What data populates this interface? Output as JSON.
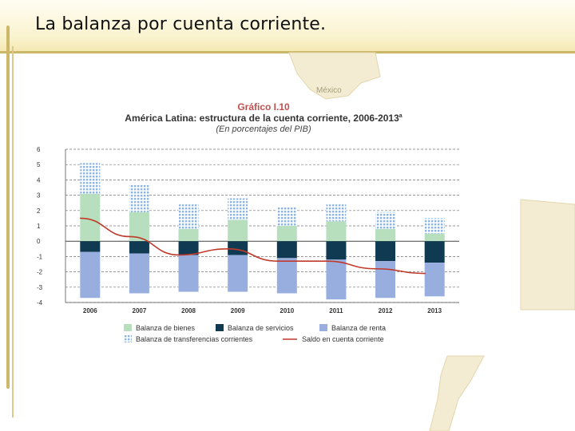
{
  "slide": {
    "title": "La balanza por cuenta corriente."
  },
  "map": {
    "label": "México"
  },
  "colors": {
    "bienes": "#b7dfbd",
    "servicios": "#0f3a52",
    "renta": "#98aede",
    "transferencias": "#8fb4e2",
    "saldo": "#c0392b",
    "accent": "#cbb866"
  },
  "chart_data": {
    "type": "bar",
    "stacked": true,
    "kicker": "Gráfico I.10",
    "title": "América Latina: estructura de la cuenta corriente, 2006-2013",
    "title_note": "a",
    "subtitle": "(En porcentajes del PIB)",
    "categories": [
      "2006",
      "2007",
      "2008",
      "2009",
      "2010",
      "2011",
      "2012",
      "2013"
    ],
    "ylim": [
      -4,
      6
    ],
    "yticks": [
      6,
      5,
      4,
      3,
      2,
      1,
      0,
      -1,
      -2,
      -3,
      -4
    ],
    "grid": true,
    "legend_position": "bottom",
    "series": [
      {
        "name": "Balanza de bienes",
        "kind": "bar",
        "values": [
          3.1,
          1.9,
          0.8,
          1.4,
          1.0,
          1.3,
          0.8,
          0.5
        ]
      },
      {
        "name": "Balanza de servicios",
        "kind": "bar",
        "values": [
          -0.7,
          -0.8,
          -0.9,
          -0.9,
          -1.1,
          -1.2,
          -1.3,
          -1.4
        ]
      },
      {
        "name": "Balanza de renta",
        "kind": "bar",
        "values": [
          -3.0,
          -2.6,
          -2.4,
          -2.4,
          -2.3,
          -2.6,
          -2.4,
          -2.2
        ]
      },
      {
        "name": "Balanza de transferencias corrientes",
        "kind": "bar",
        "values": [
          2.0,
          1.8,
          1.6,
          1.4,
          1.2,
          1.1,
          1.1,
          1.0
        ]
      },
      {
        "name": "Saldo en cuenta corriente",
        "kind": "line",
        "values": [
          1.5,
          0.3,
          -0.9,
          -0.5,
          -1.3,
          -1.3,
          -1.8,
          -2.1
        ]
      }
    ]
  }
}
